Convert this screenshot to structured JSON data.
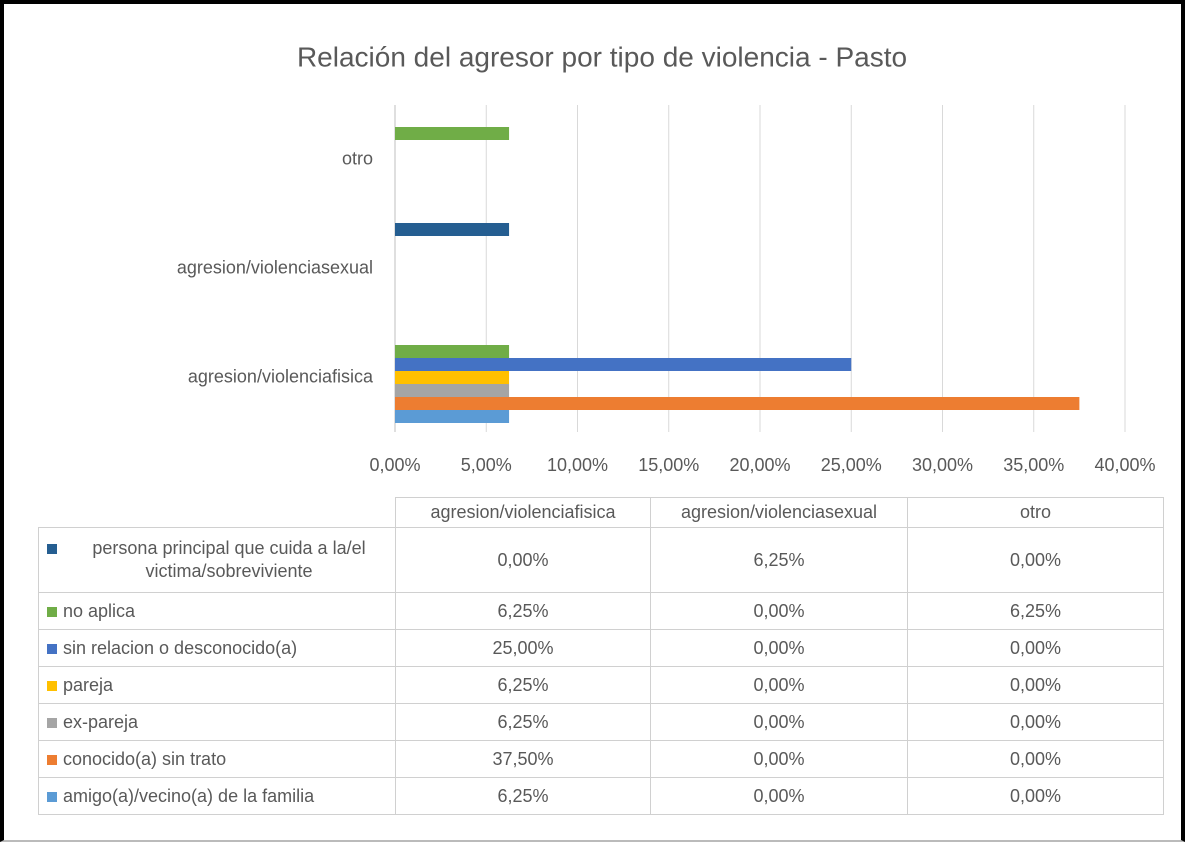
{
  "chart_data": {
    "type": "bar",
    "orientation": "horizontal",
    "title": "Relación del agresor por tipo de violencia - Pasto",
    "categories": [
      "agresion/violenciafisica",
      "agresion/violenciasexual",
      "otro"
    ],
    "series": [
      {
        "name": "persona principal que cuida a la/el victima/sobreviviente",
        "color": "#255e91",
        "values": [
          0,
          6.25,
          0
        ],
        "value_labels": [
          "0,00%",
          "6,25%",
          "0,00%"
        ]
      },
      {
        "name": "no aplica",
        "color": "#70ad47",
        "values": [
          6.25,
          0,
          6.25
        ],
        "value_labels": [
          "6,25%",
          "0,00%",
          "6,25%"
        ]
      },
      {
        "name": "sin relacion o desconocido(a)",
        "color": "#4472c4",
        "values": [
          25,
          0,
          0
        ],
        "value_labels": [
          "25,00%",
          "0,00%",
          "0,00%"
        ]
      },
      {
        "name": "pareja",
        "color": "#ffc000",
        "values": [
          6.25,
          0,
          0
        ],
        "value_labels": [
          "6,25%",
          "0,00%",
          "0,00%"
        ]
      },
      {
        "name": "ex-pareja",
        "color": "#a5a5a5",
        "values": [
          6.25,
          0,
          0
        ],
        "value_labels": [
          "6,25%",
          "0,00%",
          "0,00%"
        ]
      },
      {
        "name": "conocido(a) sin trato",
        "color": "#ed7d31",
        "values": [
          37.5,
          0,
          0
        ],
        "value_labels": [
          "37,50%",
          "0,00%",
          "0,00%"
        ]
      },
      {
        "name": "amigo(a)/vecino(a) de la familia",
        "color": "#5b9bd5",
        "values": [
          6.25,
          0,
          0
        ],
        "value_labels": [
          "6,25%",
          "0,00%",
          "0,00%"
        ]
      }
    ],
    "xlim": [
      0,
      40
    ],
    "xticks": [
      {
        "value": 0,
        "label": "0,00%"
      },
      {
        "value": 5,
        "label": "5,00%"
      },
      {
        "value": 10,
        "label": "10,00%"
      },
      {
        "value": 15,
        "label": "15,00%"
      },
      {
        "value": 20,
        "label": "20,00%"
      },
      {
        "value": 25,
        "label": "25,00%"
      },
      {
        "value": 30,
        "label": "30,00%"
      },
      {
        "value": 35,
        "label": "35,00%"
      },
      {
        "value": 40,
        "label": "40,00%"
      }
    ],
    "grid": true,
    "data_table": true
  }
}
